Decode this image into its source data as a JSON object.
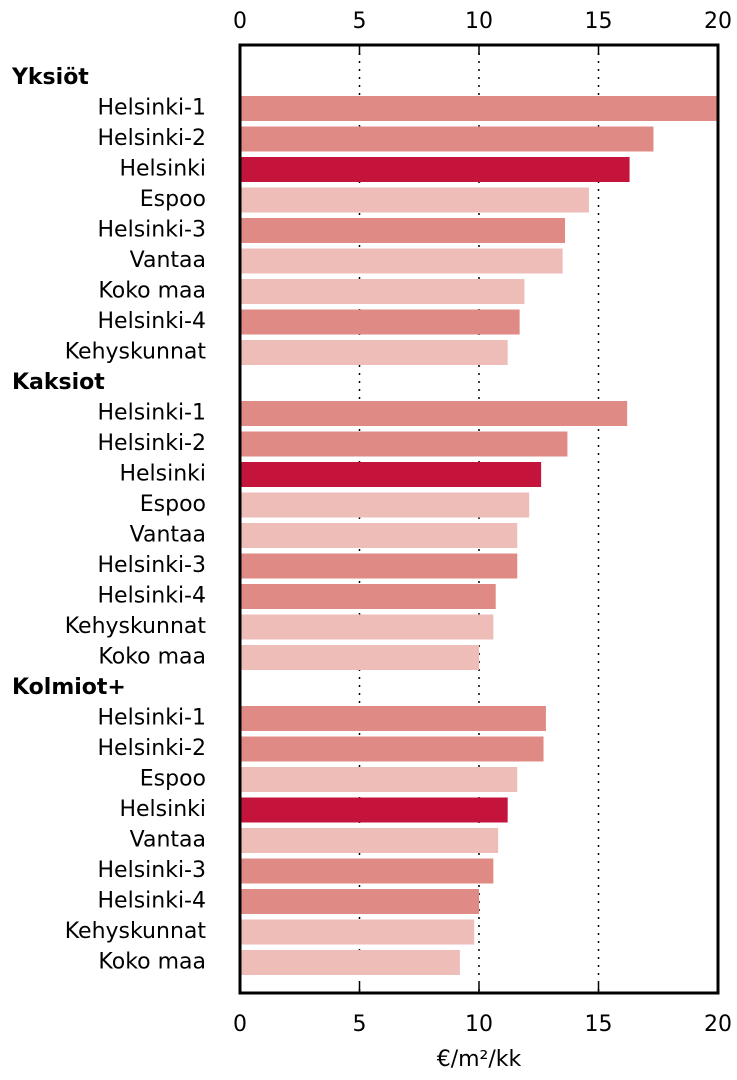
{
  "chart_data": {
    "type": "grouped-hbar",
    "xlabel": "€/m²/kk",
    "xlim": [
      0,
      20
    ],
    "xticks": [
      0,
      5,
      10,
      15,
      20
    ],
    "grid": true,
    "groups": [
      {
        "name": "Yksiöt",
        "categories": [
          "Helsinki-1",
          "Helsinki-2",
          "Helsinki",
          "Espoo",
          "Helsinki-3",
          "Vantaa",
          "Koko maa",
          "Helsinki-4",
          "Kehyskunnat"
        ],
        "values": [
          20.0,
          17.3,
          16.3,
          14.6,
          13.6,
          13.5,
          11.9,
          11.7,
          11.2
        ],
        "colors": [
          "#df8a84",
          "#df8a84",
          "#c4143c",
          "#efbdb8",
          "#df8a84",
          "#efbdb8",
          "#efbdb8",
          "#df8a84",
          "#efbdb8"
        ]
      },
      {
        "name": "Kaksiot",
        "categories": [
          "Helsinki-1",
          "Helsinki-2",
          "Helsinki",
          "Espoo",
          "Vantaa",
          "Helsinki-3",
          "Helsinki-4",
          "Kehyskunnat",
          "Koko maa"
        ],
        "values": [
          16.2,
          13.7,
          12.6,
          12.1,
          11.6,
          11.6,
          10.7,
          10.6,
          10.0
        ],
        "colors": [
          "#df8a84",
          "#df8a84",
          "#c4143c",
          "#efbdb8",
          "#efbdb8",
          "#df8a84",
          "#df8a84",
          "#efbdb8",
          "#efbdb8"
        ]
      },
      {
        "name": "Kolmiot+",
        "categories": [
          "Helsinki-1",
          "Helsinki-2",
          "Espoo",
          "Helsinki",
          "Vantaa",
          "Helsinki-3",
          "Helsinki-4",
          "Kehyskunnat",
          "Koko maa"
        ],
        "values": [
          12.8,
          12.7,
          11.6,
          11.2,
          10.8,
          10.6,
          10.0,
          9.8,
          9.2
        ],
        "colors": [
          "#df8a84",
          "#df8a84",
          "#efbdb8",
          "#c4143c",
          "#efbdb8",
          "#df8a84",
          "#df8a84",
          "#efbdb8",
          "#efbdb8"
        ]
      }
    ]
  }
}
